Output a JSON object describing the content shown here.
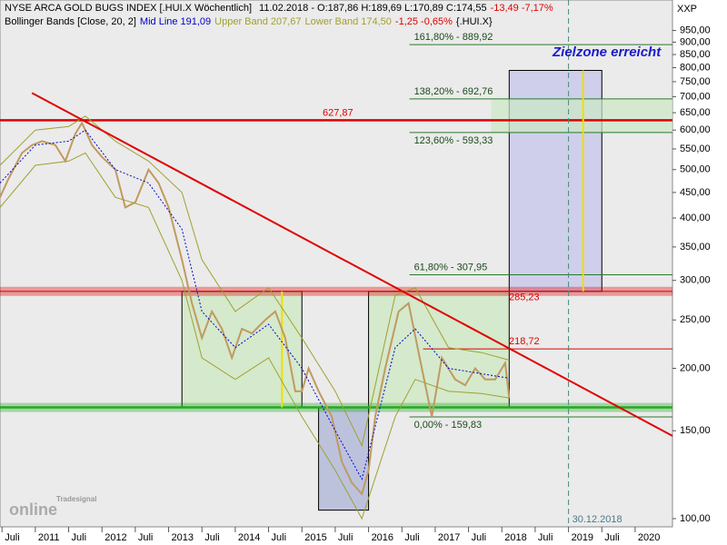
{
  "header": {
    "title": "NYSE ARCA GOLD BUGS INDEX [.HUI.X  Wöchentlich]",
    "ohlc": "11.02.2018 - O:187,86 H:189,69 L:170,89 C:174,55",
    "change": "-13,49 -7,17%",
    "indicator": "Bollinger Bands [Close, 20, 2]",
    "mid_value": "191,09",
    "upper_value": "207,67",
    "lower_value": "174,50",
    "indicator_change": "-1,25 -0,65%",
    "symbol": "{.HUI.X}",
    "currency": "XXP",
    "logo": [
      "Tradesignal",
      "online"
    ]
  },
  "chart_data": {
    "type": "line",
    "log_scale": true,
    "xlim": [
      2010.47,
      2020.56
    ],
    "ylim": [
      96.3,
      1093
    ],
    "xticks": [
      {
        "value": 2010.5,
        "label": "Juli"
      },
      {
        "value": 2011,
        "label": "2011"
      },
      {
        "value": 2011.5,
        "label": "Juli"
      },
      {
        "value": 2012,
        "label": "2012"
      },
      {
        "value": 2012.5,
        "label": "Juli"
      },
      {
        "value": 2013,
        "label": "2013"
      },
      {
        "value": 2013.5,
        "label": "Juli"
      },
      {
        "value": 2014,
        "label": "2014"
      },
      {
        "value": 2014.5,
        "label": "Juli"
      },
      {
        "value": 2015,
        "label": "2015"
      },
      {
        "value": 2015.5,
        "label": "Juli"
      },
      {
        "value": 2016,
        "label": "2016"
      },
      {
        "value": 2016.5,
        "label": "Juli"
      },
      {
        "value": 2017,
        "label": "2017"
      },
      {
        "value": 2017.5,
        "label": "Juli"
      },
      {
        "value": 2018,
        "label": "2018"
      },
      {
        "value": 2018.5,
        "label": "Juli"
      },
      {
        "value": 2019,
        "label": "2019"
      },
      {
        "value": 2019.5,
        "label": "Juli"
      },
      {
        "value": 2020,
        "label": "2020"
      }
    ],
    "yticks": [
      {
        "value": 100,
        "label": "100,00"
      },
      {
        "value": 150,
        "label": "150,00"
      },
      {
        "value": 200,
        "label": "200,00"
      },
      {
        "value": 250,
        "label": "250,00"
      },
      {
        "value": 300,
        "label": "300,00"
      },
      {
        "value": 350,
        "label": "350,00"
      },
      {
        "value": 400,
        "label": "400,00"
      },
      {
        "value": 450,
        "label": "450,00"
      },
      {
        "value": 500,
        "label": "500,00"
      },
      {
        "value": 550,
        "label": "550,00"
      },
      {
        "value": 600,
        "label": "600,00"
      },
      {
        "value": 650,
        "label": "650,00"
      },
      {
        "value": 700,
        "label": "700,00"
      },
      {
        "value": 750,
        "label": "750,00"
      },
      {
        "value": 800,
        "label": "800,00"
      },
      {
        "value": 850,
        "label": "850,00"
      },
      {
        "value": 900,
        "label": "900,00"
      },
      {
        "value": 950,
        "label": "950,00"
      }
    ],
    "series": [
      {
        "color": "#c09a60",
        "x": [
          2010.47,
          2010.6,
          2010.8,
          2010.95,
          2011.1,
          2011.3,
          2011.45,
          2011.6,
          2011.7,
          2011.85,
          2012.0,
          2012.2,
          2012.35,
          2012.5,
          2012.7,
          2012.85,
          2013.0,
          2013.2,
          2013.35,
          2013.5,
          2013.65,
          2013.8,
          2013.95,
          2014.1,
          2014.25,
          2014.45,
          2014.6,
          2014.75,
          2014.9,
          2015.0,
          2015.1,
          2015.25,
          2015.45,
          2015.6,
          2015.75,
          2015.9,
          2016.0,
          2016.1,
          2016.25,
          2016.45,
          2016.6,
          2016.8,
          2016.95,
          2017.1,
          2017.3,
          2017.45,
          2017.6,
          2017.75,
          2017.9,
          2018.05,
          2018.11
        ],
        "values": [
          440,
          480,
          540,
          560,
          570,
          560,
          520,
          590,
          620,
          560,
          530,
          500,
          420,
          430,
          500,
          470,
          420,
          330,
          270,
          230,
          260,
          240,
          210,
          240,
          235,
          250,
          260,
          230,
          180,
          180,
          200,
          180,
          160,
          130,
          118,
          112,
          125,
          160,
          200,
          260,
          270,
          200,
          160,
          210,
          190,
          185,
          200,
          190,
          190,
          205,
          174.55
        ]
      },
      {
        "name": "Mid Line",
        "color": "#0000cc",
        "x": [
          2010.47,
          2011.0,
          2011.5,
          2011.75,
          2012.2,
          2012.7,
          2013.2,
          2013.5,
          2014.0,
          2014.5,
          2015.0,
          2015.5,
          2015.9,
          2016.4,
          2016.7,
          2017.2,
          2017.7,
          2018.11
        ],
        "values": [
          470,
          560,
          570,
          600,
          500,
          470,
          380,
          260,
          220,
          245,
          200,
          150,
          120,
          220,
          240,
          200,
          195,
          191.09
        ]
      },
      {
        "name": "Upper Band",
        "color": "#a0a030",
        "x": [
          2010.47,
          2011.0,
          2011.5,
          2011.75,
          2012.2,
          2012.7,
          2013.2,
          2013.5,
          2014.0,
          2014.5,
          2015.0,
          2015.5,
          2015.9,
          2016.4,
          2016.7,
          2017.2,
          2017.7,
          2018.11
        ],
        "values": [
          510,
          600,
          610,
          640,
          570,
          520,
          450,
          330,
          260,
          290,
          230,
          180,
          140,
          280,
          290,
          220,
          215,
          207.67
        ]
      },
      {
        "name": "Lower Band",
        "color": "#a0a030",
        "x": [
          2010.47,
          2011.0,
          2011.5,
          2011.75,
          2012.2,
          2012.7,
          2013.2,
          2013.5,
          2014.0,
          2014.5,
          2015.0,
          2015.5,
          2015.9,
          2016.4,
          2016.7,
          2017.2,
          2017.7,
          2018.11
        ],
        "values": [
          420,
          510,
          520,
          540,
          440,
          420,
          300,
          210,
          190,
          210,
          160,
          125,
          100,
          160,
          190,
          180,
          178,
          174.5
        ]
      }
    ],
    "levels": [
      {
        "value": 627.87,
        "label": "627,87",
        "color": "#e00000"
      },
      {
        "value": 285.23,
        "label": "285,23",
        "color": "#e00000"
      },
      {
        "value": 218.72,
        "label": "218,72",
        "color": "#e00000"
      },
      {
        "value": 167,
        "color": "#22aa22"
      }
    ],
    "fib_levels": [
      {
        "value": 889.92,
        "label": "161,80% - 889,92"
      },
      {
        "value": 692.76,
        "label": "138,20% - 692,76"
      },
      {
        "value": 593.33,
        "label": "123,60% - 593,33"
      },
      {
        "value": 307.95,
        "label": "61,80% - 307,95"
      },
      {
        "value": 159.83,
        "label": "0,00% - 159,83"
      }
    ],
    "boxes": [
      {
        "x": [
          2013.2,
          2015.0
        ],
        "y": [
          167,
          285.23
        ],
        "fill": "#cfe8c4"
      },
      {
        "x": [
          2016.0,
          2018.11
        ],
        "y": [
          167,
          285.23
        ],
        "fill": "#cfe8c4"
      },
      {
        "x": [
          2015.25,
          2016.0
        ],
        "y": [
          104,
          167
        ],
        "fill": "#b0b8d8"
      },
      {
        "x": [
          2018.11,
          2019.5
        ],
        "y": [
          285.23,
          790
        ],
        "fill": "#c8c8ec"
      }
    ],
    "trend": {
      "x": [
        2010.95,
        2020.56
      ],
      "values": [
        712,
        146.5
      ],
      "color": "#e00000"
    },
    "target_lines": [
      {
        "x": 2014.7,
        "y": [
          167,
          285.23
        ]
      },
      {
        "x": 2019.22,
        "y": [
          285.23,
          790
        ]
      }
    ],
    "vline": {
      "value": 2019,
      "label": "30.12.2018"
    },
    "target_text": "Zielzone erreicht"
  }
}
